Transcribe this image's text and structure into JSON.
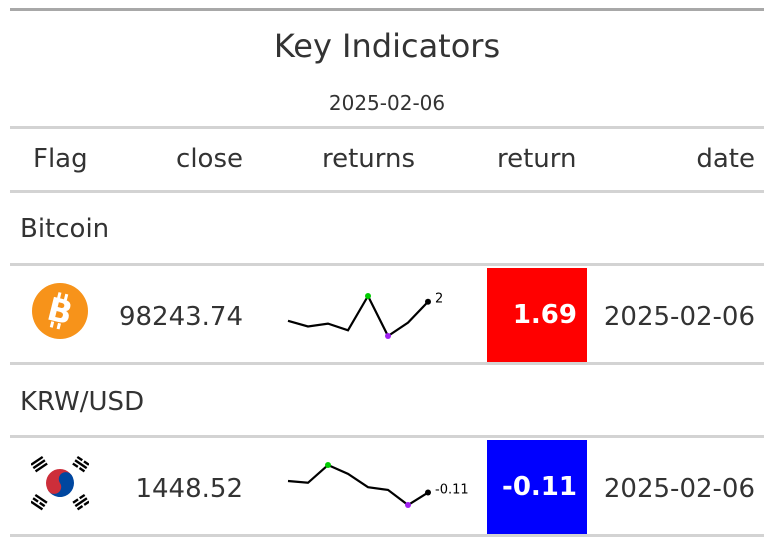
{
  "table": {
    "title": "Key Indicators",
    "subtitle": "2025-02-06",
    "columns": {
      "flag": "Flag",
      "close": "close",
      "returns": "returns",
      "return": "return",
      "date": "date"
    },
    "groups": [
      {
        "label": "Bitcoin",
        "flag_icon": "bitcoin-icon",
        "close": "98243.74",
        "spark_values": [
          0,
          -0.6,
          -0.3,
          -1.0,
          2.6,
          -1.6,
          -0.2,
          2
        ],
        "spark_label": "2",
        "return": "1.69",
        "return_color": "#ff0000",
        "date": "2025-02-06"
      },
      {
        "label": "KRW/USD",
        "flag_icon": "south-korea-flag-icon",
        "close": "1448.52",
        "spark_values": [
          0.02,
          0.0,
          0.2,
          0.1,
          -0.05,
          -0.08,
          -0.25,
          -0.11
        ],
        "spark_label": "-0.11",
        "return": "-0.11",
        "return_color": "#0000ff",
        "date": "2025-02-06"
      }
    ]
  }
}
